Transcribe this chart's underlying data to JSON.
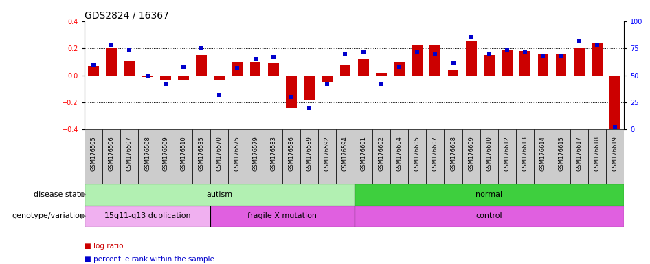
{
  "title": "GDS2824 / 16367",
  "samples": [
    "GSM176505",
    "GSM176506",
    "GSM176507",
    "GSM176508",
    "GSM176509",
    "GSM176510",
    "GSM176535",
    "GSM176570",
    "GSM176575",
    "GSM176579",
    "GSM176583",
    "GSM176586",
    "GSM176589",
    "GSM176592",
    "GSM176594",
    "GSM176601",
    "GSM176602",
    "GSM176604",
    "GSM176605",
    "GSM176607",
    "GSM176608",
    "GSM176609",
    "GSM176610",
    "GSM176612",
    "GSM176613",
    "GSM176614",
    "GSM176615",
    "GSM176617",
    "GSM176618",
    "GSM176619"
  ],
  "log_ratio": [
    0.07,
    0.2,
    0.11,
    -0.01,
    -0.04,
    -0.04,
    0.15,
    -0.04,
    0.1,
    0.1,
    0.09,
    -0.24,
    -0.18,
    -0.05,
    0.08,
    0.12,
    0.02,
    0.1,
    0.22,
    0.22,
    0.04,
    0.25,
    0.15,
    0.19,
    0.18,
    0.16,
    0.16,
    0.2,
    0.24,
    -0.42
  ],
  "percentile": [
    60,
    78,
    73,
    50,
    42,
    58,
    75,
    32,
    57,
    65,
    67,
    30,
    20,
    42,
    70,
    72,
    42,
    58,
    72,
    70,
    62,
    85,
    70,
    73,
    72,
    68,
    68,
    82,
    78,
    2
  ],
  "disease_state_groups": [
    {
      "label": "autism",
      "start": 0,
      "end": 14,
      "color": "#b2f0b2"
    },
    {
      "label": "normal",
      "start": 15,
      "end": 29,
      "color": "#3ecf3e"
    }
  ],
  "genotype_groups": [
    {
      "label": "15q11-q13 duplication",
      "start": 0,
      "end": 6,
      "color": "#f0b0f0"
    },
    {
      "label": "fragile X mutation",
      "start": 7,
      "end": 14,
      "color": "#e060e0"
    },
    {
      "label": "control",
      "start": 15,
      "end": 29,
      "color": "#e060e0"
    }
  ],
  "bar_color": "#cc0000",
  "dot_color": "#0000cc",
  "bar_width": 0.6,
  "ylim": [
    -0.4,
    0.4
  ],
  "y2lim": [
    0,
    100
  ],
  "yticks": [
    -0.4,
    -0.2,
    0.0,
    0.2,
    0.4
  ],
  "y2ticks": [
    0,
    25,
    50,
    75,
    100
  ],
  "disease_state_label": "disease state",
  "genotype_label": "genotype/variation",
  "legend_bar_label": "log ratio",
  "legend_dot_label": "percentile rank within the sample",
  "title_fontsize": 10,
  "tick_fontsize": 7,
  "label_fontsize": 8,
  "group_fontsize": 8
}
